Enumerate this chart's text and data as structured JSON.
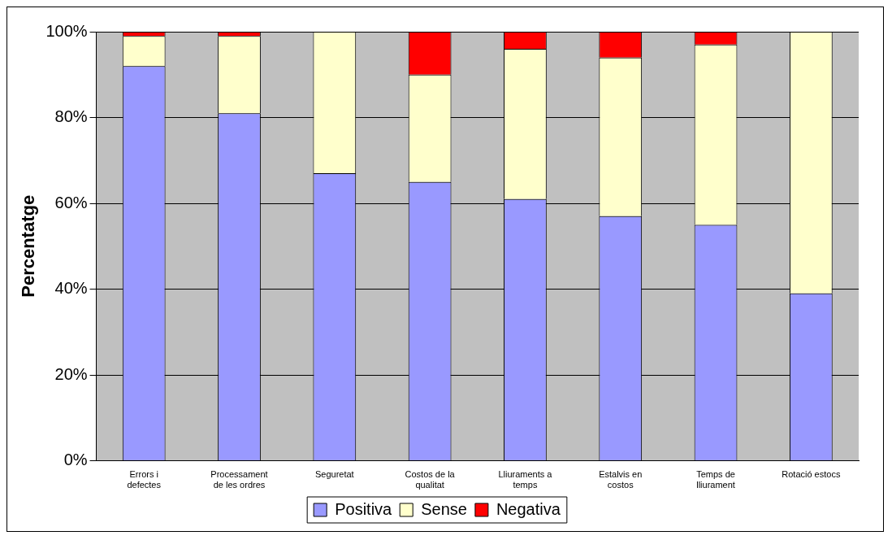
{
  "chart_data": {
    "type": "bar",
    "stacked": true,
    "ylabel": "Percentatge",
    "categories": [
      "Errors i defectes",
      "Processament de les ordres",
      "Seguretat",
      "Costos de la qualitat",
      "Lliuraments a temps",
      "Estalvis en costos",
      "Temps de lliurament",
      "Rotació estocs"
    ],
    "series": [
      {
        "name": "Positiva",
        "color": "#9999ff",
        "values": [
          92,
          81,
          67,
          65,
          61,
          57,
          55,
          39
        ]
      },
      {
        "name": "Sense",
        "color": "#ffffcc",
        "values": [
          7,
          18,
          33,
          25,
          35,
          37,
          42,
          61
        ]
      },
      {
        "name": "Negativa",
        "color": "#ff0000",
        "values": [
          1,
          1,
          0,
          10,
          4,
          6,
          3,
          0
        ]
      }
    ],
    "ylim": [
      0,
      100
    ],
    "yticks": [
      {
        "value": 0,
        "label": "0%"
      },
      {
        "value": 20,
        "label": "20%"
      },
      {
        "value": 40,
        "label": "40%"
      },
      {
        "value": 60,
        "label": "60%"
      },
      {
        "value": 80,
        "label": "80%"
      },
      {
        "value": 100,
        "label": "100%"
      }
    ],
    "grid": "y",
    "legend": "bottom"
  }
}
